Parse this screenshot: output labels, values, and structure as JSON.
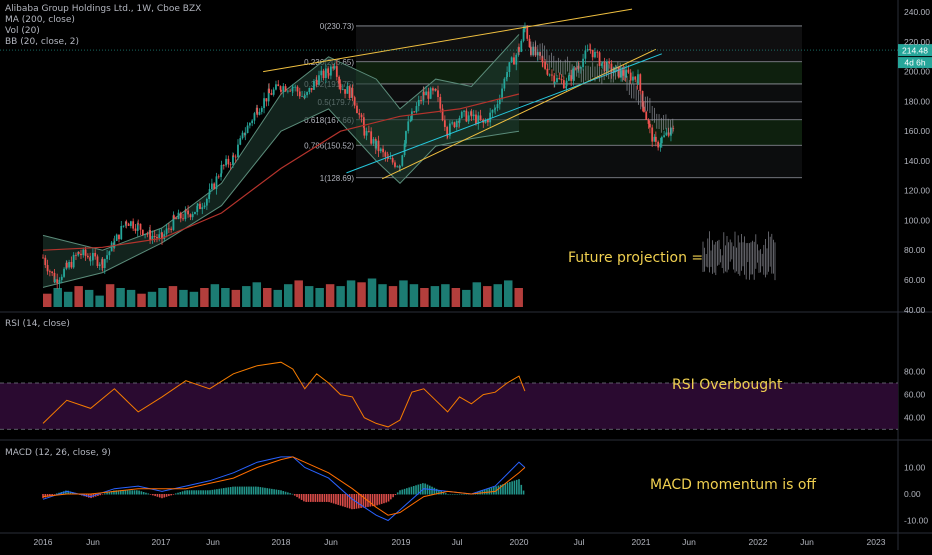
{
  "header": {
    "lines": [
      "Alibaba Group Holdings Ltd., 1W, Cboe BZX",
      "MA (200, close)",
      "Vol (20)",
      "BB (20, close, 2)"
    ]
  },
  "panes": {
    "rsi_label": "RSI (14, close)",
    "macd_label": "MACD (12, 26, close, 9)"
  },
  "annotations": {
    "future": "Future projection =",
    "rsi": "RSI Overbought",
    "macd": "MACD momentum is off"
  },
  "price_badge": {
    "price": "214.48",
    "countdown": "4d 6h"
  },
  "colors": {
    "up": "#26a69a",
    "down": "#ef5350",
    "ma": "#b4332c",
    "bb_fill": "#1e3a30",
    "fib_line": "#787b86",
    "trend": "#f0c040",
    "rsi": "#f57c00",
    "rsi_band": "#2a0a30",
    "macd": "#2962ff",
    "signal": "#ff6d00",
    "note": "#f0d050"
  },
  "chart_data": [
    {
      "type": "candlestick",
      "title": "Alibaba Group Holdings Ltd., 1W, Cboe BZX",
      "x_ticks": [
        "2016",
        "Jun",
        "2017",
        "Jun",
        "2018",
        "Jun",
        "2019",
        "Jul",
        "2020",
        "Jul",
        "2021",
        "Jun",
        "2022",
        "Jun",
        "2023"
      ],
      "y_ticks": [
        40,
        60,
        80,
        100,
        120,
        140,
        160,
        180,
        200,
        220,
        240
      ],
      "ylim": [
        40,
        250
      ],
      "last_price": 214.48,
      "fib_levels": [
        {
          "ratio": "0",
          "price": 230.73
        },
        {
          "ratio": "0.236",
          "price": 206.65
        },
        {
          "ratio": "0.382",
          "price": 191.75
        },
        {
          "ratio": "0.5",
          "price": 179.7
        },
        {
          "ratio": "0.618",
          "price": 167.66
        },
        {
          "ratio": "0.786",
          "price": 150.52
        },
        {
          "ratio": "1",
          "price": 128.69
        }
      ],
      "fib_labels": [
        "0(230.73)",
        "0.236(206.65)",
        "0.382(191.75)",
        "0.5(179.7)",
        "0.618(167.66)",
        "0.786(150.52)",
        "1(128.69)"
      ],
      "close_path": [
        [
          2016.0,
          75
        ],
        [
          2016.1,
          60
        ],
        [
          2016.2,
          68
        ],
        [
          2016.3,
          78
        ],
        [
          2016.4,
          75
        ],
        [
          2016.5,
          72
        ],
        [
          2016.6,
          85
        ],
        [
          2016.7,
          100
        ],
        [
          2016.8,
          96
        ],
        [
          2016.9,
          90
        ],
        [
          2017.0,
          88
        ],
        [
          2017.1,
          100
        ],
        [
          2017.2,
          104
        ],
        [
          2017.3,
          108
        ],
        [
          2017.4,
          118
        ],
        [
          2017.5,
          135
        ],
        [
          2017.6,
          142
        ],
        [
          2017.7,
          160
        ],
        [
          2017.8,
          175
        ],
        [
          2017.9,
          185
        ],
        [
          2018.0,
          190
        ],
        [
          2018.1,
          190
        ],
        [
          2018.2,
          182
        ],
        [
          2018.3,
          195
        ],
        [
          2018.4,
          200
        ],
        [
          2018.45,
          207
        ],
        [
          2018.5,
          190
        ],
        [
          2018.6,
          185
        ],
        [
          2018.7,
          160
        ],
        [
          2018.8,
          150
        ],
        [
          2018.9,
          140
        ],
        [
          2019.0,
          138
        ],
        [
          2019.05,
          160
        ],
        [
          2019.1,
          170
        ],
        [
          2019.2,
          185
        ],
        [
          2019.3,
          185
        ],
        [
          2019.4,
          160
        ],
        [
          2019.5,
          170
        ],
        [
          2019.6,
          170
        ],
        [
          2019.7,
          165
        ],
        [
          2019.8,
          175
        ],
        [
          2019.9,
          200
        ],
        [
          2020.0,
          215
        ],
        [
          2020.05,
          230
        ],
        [
          2020.1,
          215
        ],
        [
          2020.2,
          205
        ],
        [
          2020.3,
          195
        ],
        [
          2020.4,
          192
        ],
        [
          2020.5,
          205
        ],
        [
          2020.6,
          215
        ],
        [
          2020.7,
          205
        ],
        [
          2020.8,
          200
        ],
        [
          2020.9,
          198
        ],
        [
          2021.0,
          195
        ],
        [
          2021.05,
          175
        ],
        [
          2021.1,
          160
        ],
        [
          2021.15,
          150
        ],
        [
          2021.2,
          155
        ],
        [
          2021.3,
          160
        ]
      ],
      "ma200_path": [
        [
          2016.0,
          80
        ],
        [
          2016.5,
          82
        ],
        [
          2017.0,
          88
        ],
        [
          2017.5,
          105
        ],
        [
          2018.0,
          135
        ],
        [
          2018.5,
          160
        ],
        [
          2019.0,
          170
        ],
        [
          2019.5,
          175
        ],
        [
          2020.0,
          185
        ]
      ],
      "bb_upper_path": [
        [
          2016.0,
          90
        ],
        [
          2016.5,
          80
        ],
        [
          2017.0,
          95
        ],
        [
          2017.5,
          125
        ],
        [
          2018.0,
          185
        ],
        [
          2018.4,
          210
        ],
        [
          2018.8,
          195
        ],
        [
          2019.0,
          175
        ],
        [
          2019.3,
          195
        ],
        [
          2019.6,
          190
        ],
        [
          2020.0,
          225
        ]
      ],
      "bb_lower_path": [
        [
          2016.0,
          55
        ],
        [
          2016.5,
          65
        ],
        [
          2017.0,
          85
        ],
        [
          2017.5,
          110
        ],
        [
          2018.0,
          160
        ],
        [
          2018.4,
          175
        ],
        [
          2018.8,
          140
        ],
        [
          2019.0,
          125
        ],
        [
          2019.3,
          150
        ],
        [
          2019.6,
          155
        ],
        [
          2020.0,
          160
        ]
      ],
      "trendlines": [
        {
          "from": [
            2017.85,
            200
          ],
          "to": [
            2020.95,
            242
          ]
        },
        {
          "from": [
            2018.85,
            128
          ],
          "to": [
            2021.15,
            215
          ]
        },
        {
          "from": [
            2018.55,
            132
          ],
          "to": [
            2021.2,
            212
          ]
        }
      ],
      "volume_relative": [
        0.35,
        0.5,
        0.4,
        0.55,
        0.45,
        0.3,
        0.6,
        0.5,
        0.45,
        0.35,
        0.4,
        0.5,
        0.55,
        0.45,
        0.4,
        0.5,
        0.6,
        0.5,
        0.45,
        0.55,
        0.65,
        0.5,
        0.45,
        0.6,
        0.7,
        0.55,
        0.5,
        0.6,
        0.55,
        0.7,
        0.65,
        0.75,
        0.6,
        0.55,
        0.7,
        0.6,
        0.5,
        0.55,
        0.6,
        0.5,
        0.45,
        0.65,
        0.55,
        0.6,
        0.7,
        0.5
      ]
    },
    {
      "type": "line",
      "title": "RSI (14, close)",
      "y_ticks": [
        40,
        60,
        80
      ],
      "bands": [
        30,
        70
      ],
      "values": [
        [
          2016.0,
          35
        ],
        [
          2016.2,
          55
        ],
        [
          2016.4,
          48
        ],
        [
          2016.6,
          65
        ],
        [
          2016.8,
          45
        ],
        [
          2017.0,
          58
        ],
        [
          2017.2,
          72
        ],
        [
          2017.4,
          65
        ],
        [
          2017.6,
          78
        ],
        [
          2017.8,
          85
        ],
        [
          2018.0,
          88
        ],
        [
          2018.1,
          82
        ],
        [
          2018.2,
          65
        ],
        [
          2018.3,
          78
        ],
        [
          2018.4,
          70
        ],
        [
          2018.5,
          60
        ],
        [
          2018.6,
          58
        ],
        [
          2018.7,
          40
        ],
        [
          2018.8,
          35
        ],
        [
          2018.9,
          32
        ],
        [
          2019.0,
          38
        ],
        [
          2019.1,
          62
        ],
        [
          2019.2,
          65
        ],
        [
          2019.3,
          55
        ],
        [
          2019.4,
          45
        ],
        [
          2019.5,
          58
        ],
        [
          2019.6,
          52
        ],
        [
          2019.7,
          60
        ],
        [
          2019.8,
          62
        ],
        [
          2019.9,
          70
        ],
        [
          2020.0,
          76
        ],
        [
          2020.05,
          63
        ]
      ]
    },
    {
      "type": "line",
      "title": "MACD (12, 26, close, 9)",
      "y_ticks": [
        -10,
        0,
        10
      ],
      "macd": [
        [
          2016.0,
          -2
        ],
        [
          2016.2,
          1
        ],
        [
          2016.4,
          -1
        ],
        [
          2016.6,
          2
        ],
        [
          2016.8,
          3
        ],
        [
          2017.0,
          1
        ],
        [
          2017.2,
          3
        ],
        [
          2017.4,
          5
        ],
        [
          2017.6,
          8
        ],
        [
          2017.8,
          12
        ],
        [
          2018.0,
          14
        ],
        [
          2018.1,
          14
        ],
        [
          2018.2,
          10
        ],
        [
          2018.4,
          6
        ],
        [
          2018.6,
          -2
        ],
        [
          2018.8,
          -8
        ],
        [
          2018.9,
          -10
        ],
        [
          2019.0,
          -6
        ],
        [
          2019.2,
          2
        ],
        [
          2019.4,
          1
        ],
        [
          2019.6,
          0
        ],
        [
          2019.8,
          3
        ],
        [
          2020.0,
          12
        ],
        [
          2020.05,
          10
        ]
      ],
      "signal": [
        [
          2016.0,
          -1
        ],
        [
          2016.2,
          0
        ],
        [
          2016.4,
          0
        ],
        [
          2016.6,
          1
        ],
        [
          2016.8,
          2
        ],
        [
          2017.0,
          2
        ],
        [
          2017.2,
          2
        ],
        [
          2017.4,
          4
        ],
        [
          2017.6,
          6
        ],
        [
          2017.8,
          10
        ],
        [
          2018.0,
          13
        ],
        [
          2018.1,
          14
        ],
        [
          2018.2,
          12
        ],
        [
          2018.4,
          8
        ],
        [
          2018.6,
          2
        ],
        [
          2018.8,
          -5
        ],
        [
          2018.9,
          -8
        ],
        [
          2019.0,
          -7
        ],
        [
          2019.2,
          -1
        ],
        [
          2019.4,
          1
        ],
        [
          2019.6,
          0
        ],
        [
          2019.8,
          1
        ],
        [
          2020.0,
          8
        ],
        [
          2020.05,
          10
        ]
      ]
    }
  ]
}
